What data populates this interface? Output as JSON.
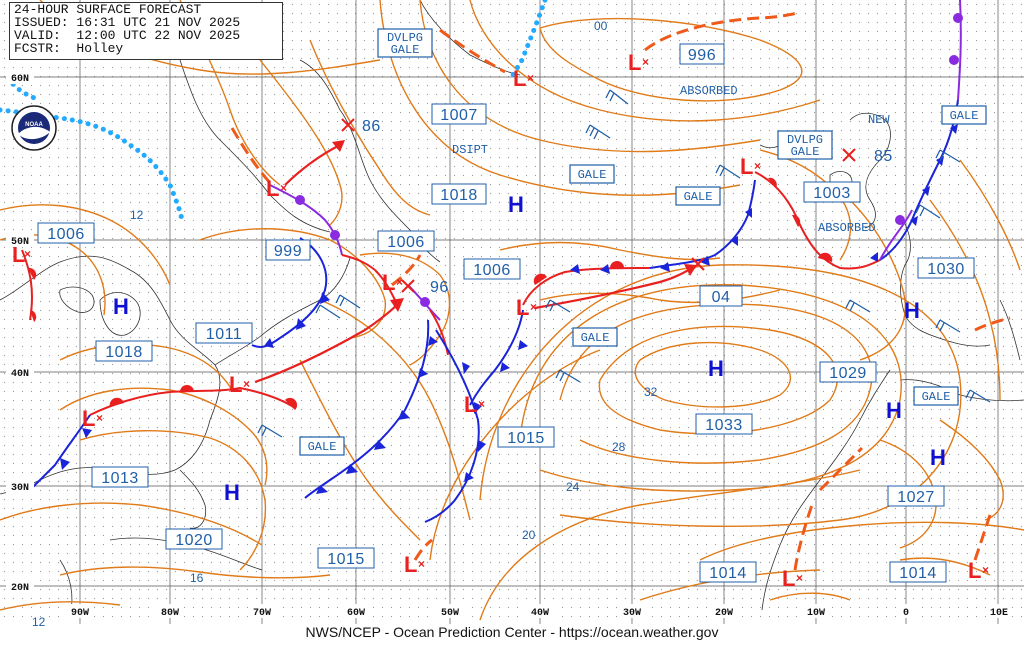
{
  "header": {
    "title": "24-HOUR SURFACE FORECAST",
    "issued": "ISSUED: 16:31 UTC 21 NOV 2025",
    "valid": "VALID:  12:00 UTC 22 NOV 2025",
    "forecaster": "FCSTR:  Holley"
  },
  "logo_text": "NOAA",
  "footer": "NWS/NCEP - Ocean Prediction Center - https://ocean.weather.gov",
  "lat_labels": [
    "60N",
    "50N",
    "40N",
    "30N",
    "20N"
  ],
  "lon_labels": [
    "90W",
    "80W",
    "70W",
    "60W",
    "50W",
    "40W",
    "30W",
    "20W",
    "10W",
    "0",
    "10E"
  ],
  "pressure_labels": [
    "996",
    "1007",
    "1018",
    "999",
    "1006",
    "1006",
    "1006",
    "1011",
    "1018",
    "1013",
    "1020",
    "1015",
    "1015",
    "04",
    "1033",
    "1029",
    "1030",
    "1003",
    "1027",
    "1014",
    "1014"
  ],
  "low_pressures": [
    "86",
    "96",
    "85"
  ],
  "highs": [
    "H",
    "H",
    "H",
    "H",
    "H",
    "H",
    "H"
  ],
  "tags": {
    "dvlpg_gale_1": [
      "DVLPG",
      "GALE"
    ],
    "dvlpg_gale_2": [
      "DVLPG",
      "GALE"
    ],
    "gale": "GALE"
  },
  "notes": {
    "absorbed": "ABSORBED",
    "dsipt": "DSIPT",
    "new": "NEW"
  },
  "isobar_labels": [
    "00",
    "12",
    "32",
    "28",
    "24",
    "20",
    "16",
    "12"
  ],
  "colors": {
    "isobar": "#e07b1a",
    "warm_front": "#e82020",
    "cold_front": "#1a24d8",
    "occluded_front": "#8a2be2",
    "label": "#1f5fa8",
    "high": "#1010d0",
    "ice_edge": "#22aaff"
  }
}
